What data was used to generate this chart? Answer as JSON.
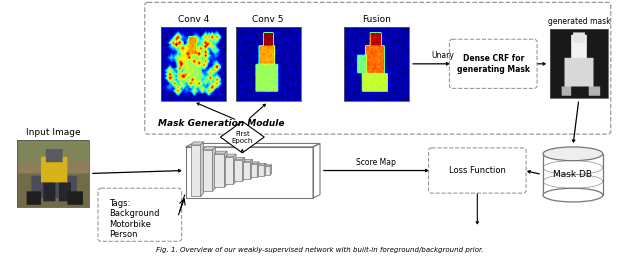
{
  "title": "Fig. 1. Overview of our weakly-supervised network with built-in foreground/background prior.",
  "mask_gen_label": "Mask Generation Module",
  "conv4_label": "Conv 4",
  "conv5_label": "Conv 5",
  "fusion_label": "Fusion",
  "unary_label": "Unary",
  "dense_crf_label": "Dense CRF for\ngenerating Mask",
  "generated_mask_label": "generated mask",
  "input_image_label": "Input Image",
  "tags_label": "Tags:\nBackground\nMotorbike\nPerson",
  "score_map_label": "Score Map",
  "loss_fn_label": "Loss Function",
  "mask_db_label": "Mask DB",
  "first_epoch_label": "First\nEpoch",
  "bg_color": "#ffffff"
}
